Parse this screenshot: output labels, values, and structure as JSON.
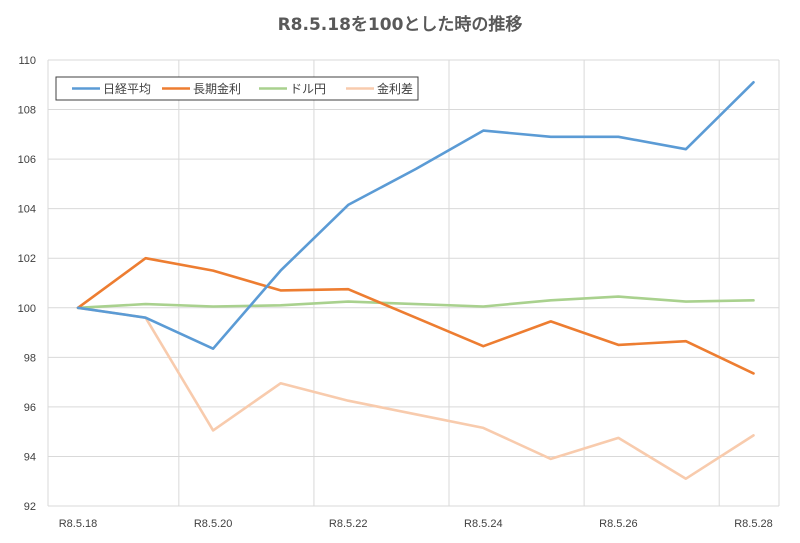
{
  "chart_data": {
    "type": "line",
    "title": "R8.5.18を100とした時の推移",
    "xlabel": "",
    "ylabel": "",
    "ylim": [
      92,
      110
    ],
    "y_ticks": [
      92,
      94,
      96,
      98,
      100,
      102,
      104,
      106,
      108,
      110
    ],
    "x_ticks": [
      "R8.5.18",
      "R8.5.20",
      "R8.5.22",
      "R8.5.24",
      "R8.5.26",
      "R8.5.28"
    ],
    "grid": true,
    "legend": "top-left",
    "series": [
      {
        "name": "日経平均",
        "color": "#5b9bd5",
        "values": [
          100.0,
          99.6,
          98.35,
          101.5,
          104.15,
          105.6,
          107.15,
          106.9,
          106.9,
          106.4,
          109.1
        ]
      },
      {
        "name": "長期金利",
        "color": "#ed7d31",
        "values": [
          100.0,
          102.0,
          101.5,
          100.7,
          100.75,
          99.6,
          98.45,
          99.45,
          98.5,
          98.65,
          97.35
        ]
      },
      {
        "name": "ドル円",
        "color": "#a9d18e",
        "values": [
          100.0,
          100.15,
          100.05,
          100.1,
          100.25,
          100.15,
          100.05,
          100.3,
          100.45,
          100.25,
          100.3
        ]
      },
      {
        "name": "金利差",
        "color": "#f8cbad",
        "values": [
          100.0,
          99.6,
          95.05,
          96.95,
          96.25,
          95.7,
          95.15,
          93.9,
          94.75,
          93.1,
          94.85
        ]
      }
    ]
  }
}
